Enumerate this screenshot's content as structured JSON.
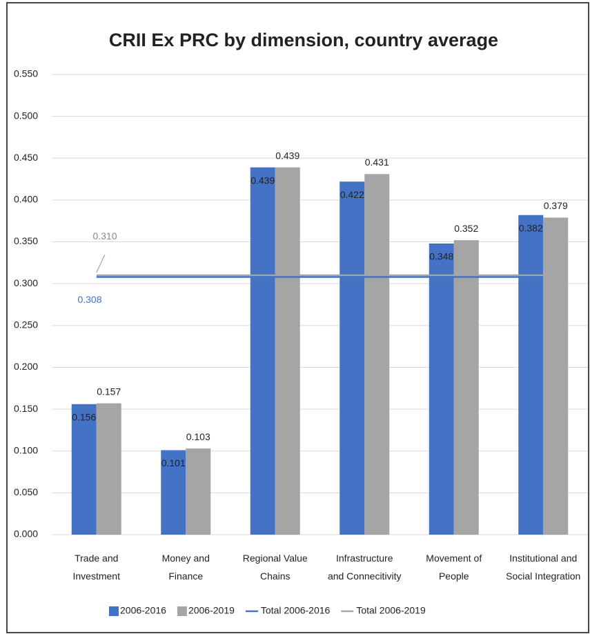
{
  "chart_data": {
    "type": "bar",
    "title": "CRII Ex PRC by dimension, country average",
    "categories": [
      "Trade and\nInvestment",
      "Money and\nFinance",
      "Regional Value\nChains",
      "Infrastructure\nand Connecitivity",
      "Movement of\nPeople",
      "Institutional and\nSocial Integration"
    ],
    "series": [
      {
        "name": "2006-2016",
        "color": "#4472c4",
        "values": [
          0.156,
          0.101,
          0.439,
          0.422,
          0.348,
          0.382
        ]
      },
      {
        "name": "2006-2019",
        "color": "#a5a5a5",
        "values": [
          0.157,
          0.103,
          0.439,
          0.431,
          0.352,
          0.379
        ]
      }
    ],
    "reference_lines": [
      {
        "name": "Total 2006-2016",
        "color": "#4472c4",
        "value": 0.308
      },
      {
        "name": "Total 2006-2019",
        "color": "#a5a5a5",
        "value": 0.31,
        "value_label": "0.310"
      }
    ],
    "ylim": [
      0,
      0.55
    ],
    "yticks": [
      {
        "value": 0,
        "label": "0.000"
      },
      {
        "value": 0.05,
        "label": "0.050"
      },
      {
        "value": 0.1,
        "label": "0.100"
      },
      {
        "value": 0.15,
        "label": "0.150"
      },
      {
        "value": 0.2,
        "label": "0.200"
      },
      {
        "value": 0.25,
        "label": "0.250"
      },
      {
        "value": 0.3,
        "label": "0.300"
      },
      {
        "value": 0.35,
        "label": "0.350"
      },
      {
        "value": 0.4,
        "label": "0.400"
      },
      {
        "value": 0.45,
        "label": "0.450"
      },
      {
        "value": 0.5,
        "label": "0.500"
      },
      {
        "value": 0.55,
        "label": "0.550"
      }
    ],
    "grid": true,
    "legend": "bottom"
  }
}
